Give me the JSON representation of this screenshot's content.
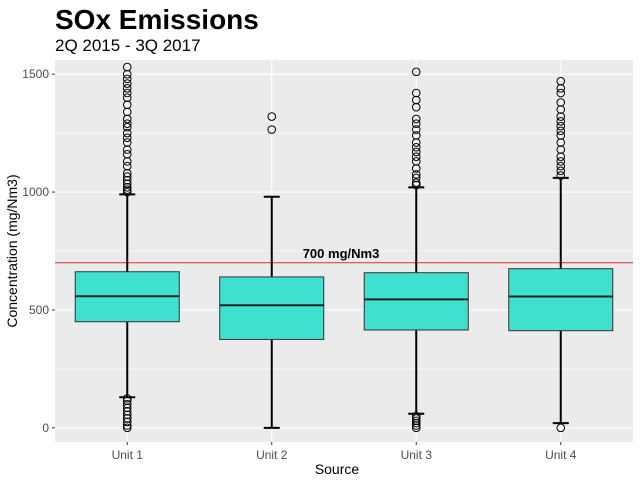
{
  "chart_data": {
    "type": "boxplot",
    "title": "SOx Emissions",
    "subtitle": "2Q 2015 - 3Q 2017",
    "xlabel": "Source",
    "ylabel": "Concentration (mg/Nm3)",
    "ylim": [
      -60,
      1560
    ],
    "yticks": [
      0,
      500,
      1000,
      1500
    ],
    "grid": true,
    "categories": [
      "Unit 1",
      "Unit 2",
      "Unit 3",
      "Unit 4"
    ],
    "box_color": "#40e0d0",
    "reference_line": {
      "value": 700,
      "label": "700 mg/Nm3",
      "color": "#e03030"
    },
    "boxes": [
      {
        "category": "Unit 1",
        "whisker_low": 130,
        "q1": 450,
        "median": 558,
        "q3": 662,
        "whisker_high": 990,
        "outliers_high": [
          1000,
          1010,
          1020,
          1035,
          1050,
          1065,
          1080,
          1110,
          1130,
          1160,
          1180,
          1210,
          1230,
          1250,
          1275,
          1290,
          1310,
          1340,
          1370,
          1400,
          1420,
          1440,
          1460,
          1480,
          1500,
          1530
        ],
        "outliers_low": [
          0,
          10,
          25,
          40,
          55,
          70,
          85,
          100,
          115,
          125
        ]
      },
      {
        "category": "Unit 2",
        "whisker_low": 0,
        "q1": 375,
        "median": 520,
        "q3": 640,
        "whisker_high": 980,
        "outliers_high": [
          1265,
          1320
        ],
        "outliers_low": []
      },
      {
        "category": "Unit 3",
        "whisker_low": 60,
        "q1": 415,
        "median": 545,
        "q3": 658,
        "whisker_high": 1020,
        "outliers_high": [
          1030,
          1040,
          1060,
          1075,
          1100,
          1130,
          1150,
          1170,
          1190,
          1210,
          1240,
          1265,
          1290,
          1310,
          1360,
          1390,
          1420,
          1510
        ],
        "outliers_low": [
          0,
          10,
          20,
          30,
          40,
          50
        ]
      },
      {
        "category": "Unit 4",
        "whisker_low": 20,
        "q1": 412,
        "median": 557,
        "q3": 675,
        "whisker_high": 1060,
        "outliers_high": [
          1070,
          1090,
          1110,
          1130,
          1150,
          1180,
          1210,
          1240,
          1260,
          1280,
          1300,
          1320,
          1350,
          1380,
          1420,
          1440,
          1470
        ],
        "outliers_low": [
          0
        ]
      }
    ]
  }
}
